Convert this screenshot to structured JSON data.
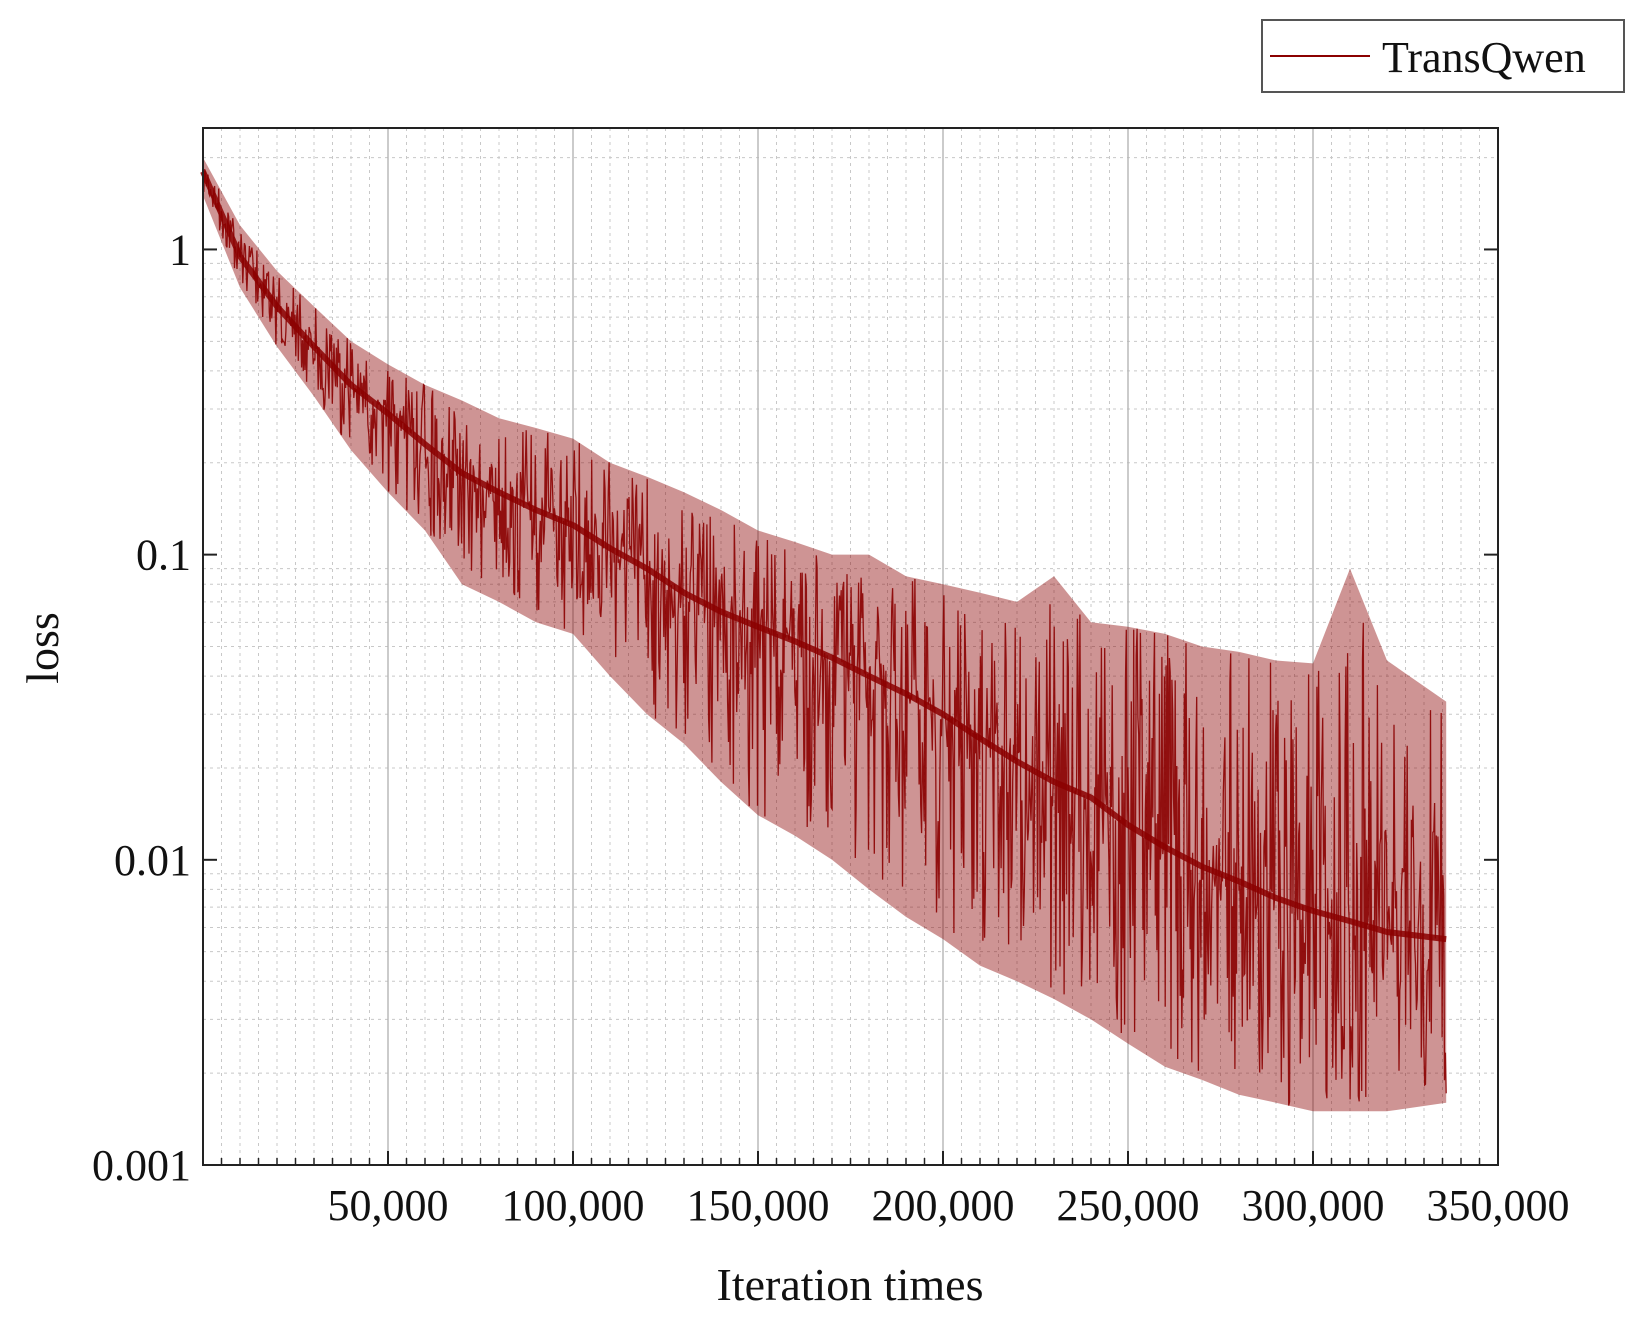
{
  "chart_data": {
    "type": "line",
    "title": "",
    "xlabel": "Iteration times",
    "ylabel": "loss",
    "y_scale": "log",
    "xlim": [
      0,
      350000
    ],
    "ylim": [
      0.001,
      2.5
    ],
    "x_ticks": [
      50000,
      100000,
      150000,
      200000,
      250000,
      300000,
      350000
    ],
    "x_tick_labels": [
      "50,000",
      "100,000",
      "150,000",
      "200,000",
      "250,000",
      "300,000",
      "350,000"
    ],
    "y_ticks": [
      0.001,
      0.01,
      0.1,
      1
    ],
    "y_tick_labels": [
      "0.001",
      "0.01",
      "0.1",
      "1"
    ],
    "grid": true,
    "legend_position": "top-right, outside plot",
    "series": [
      {
        "name": "TransQwen",
        "color": "#8b0000",
        "x": [
          0,
          10000,
          20000,
          30000,
          40000,
          50000,
          60000,
          70000,
          80000,
          90000,
          100000,
          110000,
          120000,
          130000,
          140000,
          150000,
          160000,
          170000,
          180000,
          190000,
          200000,
          210000,
          220000,
          230000,
          240000,
          250000,
          260000,
          270000,
          280000,
          290000,
          300000,
          310000,
          320000,
          336000
        ],
        "y_center": [
          1.8,
          0.95,
          0.65,
          0.48,
          0.36,
          0.29,
          0.23,
          0.185,
          0.16,
          0.14,
          0.125,
          0.105,
          0.09,
          0.075,
          0.065,
          0.058,
          0.052,
          0.046,
          0.04,
          0.035,
          0.03,
          0.025,
          0.021,
          0.018,
          0.016,
          0.013,
          0.011,
          0.0095,
          0.0085,
          0.0075,
          0.0068,
          0.0063,
          0.0058,
          0.0055
        ],
        "y_upper": [
          2.0,
          1.2,
          0.85,
          0.65,
          0.5,
          0.42,
          0.36,
          0.32,
          0.28,
          0.26,
          0.24,
          0.2,
          0.18,
          0.16,
          0.14,
          0.12,
          0.11,
          0.1,
          0.1,
          0.085,
          0.08,
          0.075,
          0.07,
          0.085,
          0.06,
          0.058,
          0.055,
          0.05,
          0.048,
          0.045,
          0.044,
          0.09,
          0.045,
          0.033
        ],
        "y_lower": [
          1.5,
          0.75,
          0.48,
          0.33,
          0.22,
          0.16,
          0.12,
          0.08,
          0.07,
          0.06,
          0.055,
          0.04,
          0.03,
          0.024,
          0.018,
          0.014,
          0.012,
          0.01,
          0.008,
          0.0065,
          0.0055,
          0.0045,
          0.004,
          0.0035,
          0.003,
          0.0025,
          0.0021,
          0.0019,
          0.0017,
          0.0016,
          0.0015,
          0.0015,
          0.0015,
          0.0016
        ]
      }
    ]
  }
}
